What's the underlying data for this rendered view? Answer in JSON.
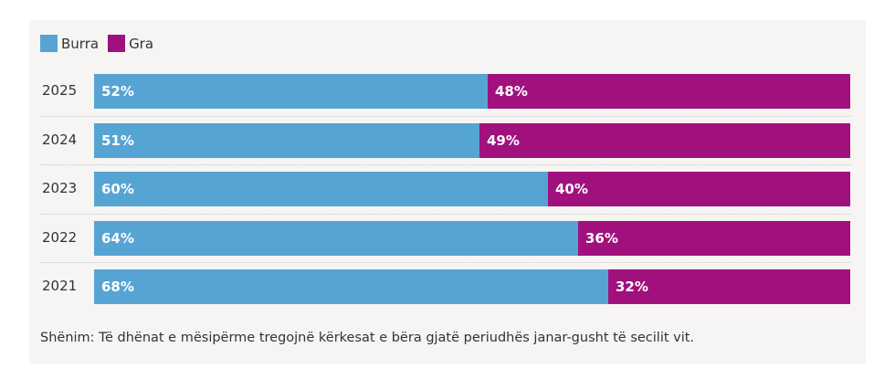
{
  "chart_data": {
    "type": "bar",
    "orientation": "horizontal",
    "stacked": true,
    "legend": [
      {
        "name": "Burra",
        "color": "#56a4d3"
      },
      {
        "name": "Gra",
        "color": "#a0117e"
      }
    ],
    "categories": [
      "2025",
      "2024",
      "2023",
      "2022",
      "2021"
    ],
    "series": [
      {
        "name": "Burra",
        "values": [
          52,
          51,
          60,
          64,
          68
        ],
        "labels": [
          "52%",
          "51%",
          "60%",
          "64%",
          "68%"
        ]
      },
      {
        "name": "Gra",
        "values": [
          48,
          49,
          40,
          36,
          32
        ],
        "labels": [
          "48%",
          "49%",
          "40%",
          "36%",
          "32%"
        ]
      }
    ],
    "xlim": [
      0,
      100
    ],
    "note": "Shënim: Të dhënat e mësipërme tregojnë kërkesat e bëra gjatë periudhës janar-gusht të secilit vit."
  }
}
